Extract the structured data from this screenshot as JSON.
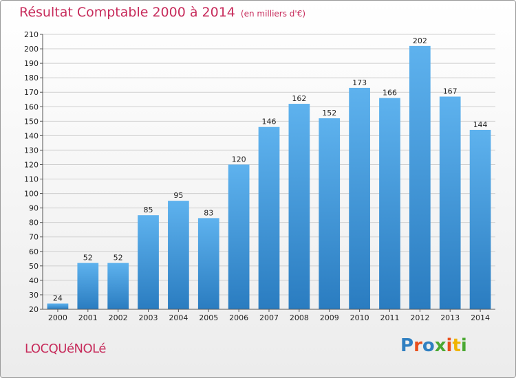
{
  "title": "Résultat Comptable 2000 à 2014",
  "subtitle": "(en milliers d'€)",
  "commune": "LOCQUéNOLé",
  "logo": {
    "text": "Proxiti",
    "letter_colors": [
      "#2f7fc1",
      "#e94e1b",
      "#2f7fc1",
      "#4aa832",
      "#e94e1b",
      "#f0b400",
      "#4aa832"
    ]
  },
  "colors": {
    "title": "#c72b5b",
    "bar_top": "#5eb2ee",
    "bar_bottom": "#2a7cc0",
    "grid": "#cfcfcf",
    "axis": "#555555"
  },
  "chart_data": {
    "type": "bar",
    "categories": [
      "2000",
      "2001",
      "2002",
      "2003",
      "2004",
      "2005",
      "2006",
      "2007",
      "2008",
      "2009",
      "2010",
      "2011",
      "2012",
      "2013",
      "2014"
    ],
    "values": [
      24,
      52,
      52,
      85,
      95,
      83,
      120,
      146,
      162,
      152,
      173,
      166,
      202,
      167,
      144
    ],
    "ylim": [
      20,
      210
    ],
    "yticks": [
      20,
      30,
      40,
      50,
      60,
      70,
      80,
      90,
      100,
      110,
      120,
      130,
      140,
      150,
      160,
      170,
      180,
      190,
      200,
      210
    ],
    "grid": true,
    "xlabel": "",
    "ylabel": ""
  }
}
